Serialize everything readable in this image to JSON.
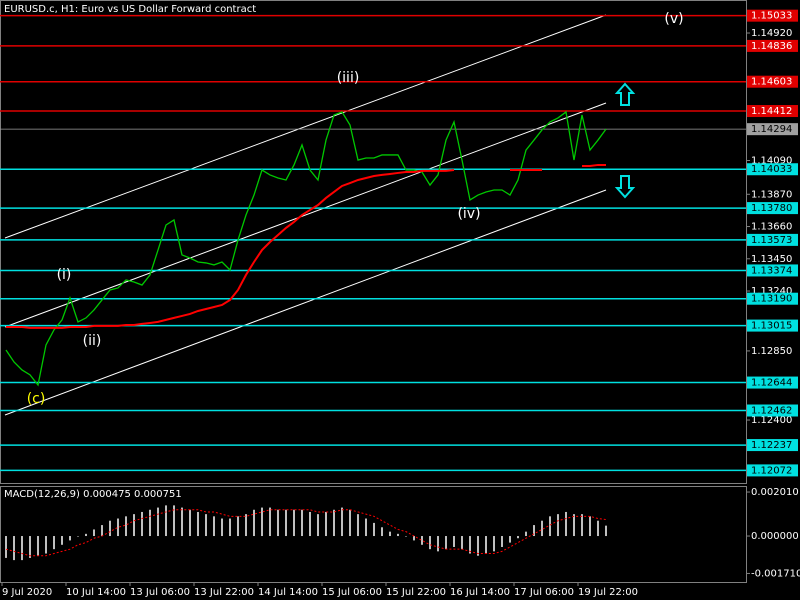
{
  "chart_data": [
    {
      "type": "line",
      "title": "EURUSD.c, H1:  Euro vs US Dollar Forward contract",
      "categories": [
        "9 Jul 2020",
        null,
        null,
        null,
        null,
        null,
        null,
        null,
        "10 Jul 14:00",
        null,
        null,
        null,
        null,
        null,
        null,
        null,
        "13 Jul 06:00",
        null,
        null,
        null,
        null,
        null,
        null,
        null,
        "13 Jul 22:00",
        null,
        null,
        null,
        null,
        null,
        null,
        null,
        "14 Jul 14:00",
        null,
        null,
        null,
        null,
        null,
        null,
        null,
        "15 Jul 06:00",
        null,
        null,
        null,
        null,
        null,
        null,
        null,
        "15 Jul 22:00",
        null,
        null,
        null,
        null,
        null,
        null,
        null,
        "16 Jul 14:00",
        null,
        null,
        null,
        null,
        null,
        null,
        null,
        "17 Jul 06:00",
        null,
        null,
        null,
        null,
        null,
        null,
        null,
        "19 Jul 22:00",
        null,
        null,
        null
      ],
      "series": [
        {
          "color": "#00c800",
          "values": [
            1.12856,
            1.12778,
            1.12726,
            1.12694,
            1.12628,
            1.12889,
            1.12987,
            1.13052,
            1.13195,
            1.13039,
            1.13065,
            1.13117,
            1.13182,
            1.13247,
            1.1326,
            1.13312,
            1.13299,
            1.13279,
            1.13345,
            1.13507,
            1.1367,
            1.13703,
            1.13475,
            1.13455,
            1.13429,
            1.13423,
            1.1341,
            1.13429,
            1.13377,
            1.13572,
            1.13735,
            1.13865,
            1.14028,
            1.13996,
            1.13976,
            1.13963,
            1.14061,
            1.14191,
            1.14028,
            1.13963,
            1.14223,
            1.14386,
            1.14406,
            1.14321,
            1.14093,
            1.14106,
            1.14106,
            1.14126,
            1.14126,
            1.14126,
            1.14028,
            1.14028,
            1.14015,
            1.1393,
            1.13996,
            1.14223,
            1.14341,
            1.14093,
            1.13833,
            1.13865,
            1.13885,
            1.13898,
            1.13898,
            1.13865,
            1.13963,
            1.14158,
            1.14223,
            1.14289,
            1.14341,
            1.14367,
            1.14406,
            1.14093,
            1.14386,
            1.14158,
            1.14223,
            1.14294
          ]
        },
        {
          "color": "#ff0000",
          "values": [
            1.13006,
            1.13006,
            1.13006,
            1.13,
            1.13,
            1.13,
            1.13,
            1.13,
            1.13006,
            1.13006,
            1.13006,
            1.13013,
            1.13013,
            1.13013,
            1.13013,
            1.13019,
            1.13019,
            1.13026,
            1.13032,
            1.13039,
            1.13052,
            1.13065,
            1.13078,
            1.13091,
            1.1311,
            1.13123,
            1.13136,
            1.13149,
            1.13182,
            1.13247,
            1.13345,
            1.13429,
            1.13507,
            1.13559,
            1.13605,
            1.13651,
            1.1369,
            1.13735,
            1.13768,
            1.138,
            1.13846,
            1.13885,
            1.13924,
            1.13943,
            1.13963,
            1.13976,
            1.13989,
            1.13996,
            1.14002,
            1.14009,
            1.14015,
            1.14015,
            1.14022,
            1.14022,
            1.14022,
            1.14022,
            1.14028,
            null,
            null,
            null,
            null,
            null,
            null,
            1.14028,
            1.14028,
            1.14028,
            1.14028,
            1.14028,
            null,
            null,
            null,
            null,
            1.14054,
            1.14054,
            1.14061,
            1.14061
          ]
        }
      ],
      "ylim": [
        1.1199,
        1.15135
      ],
      "yticks": [
        {
          "value": 1.1492,
          "label": "1.14920"
        },
        {
          "value": 1.1409,
          "label": "1.14090"
        },
        {
          "value": 1.1387,
          "label": "1.13870"
        },
        {
          "value": 1.1366,
          "label": "1.13660"
        },
        {
          "value": 1.1345,
          "label": "1.13450"
        },
        {
          "value": 1.1324,
          "label": "1.13240"
        },
        {
          "value": 1.1285,
          "label": "1.12850"
        },
        {
          "value": 1.124,
          "label": "1.12400"
        }
      ],
      "levels": [
        {
          "value": 1.15033,
          "label": "1.15033",
          "color": "#e00000"
        },
        {
          "value": 1.14836,
          "label": "1.14836",
          "color": "#e00000"
        },
        {
          "value": 1.14603,
          "label": "1.14603",
          "color": "#e00000"
        },
        {
          "value": 1.14412,
          "label": "1.14412",
          "color": "#e00000"
        },
        {
          "value": 1.14033,
          "label": "1.14033",
          "color": "#00e0e0"
        },
        {
          "value": 1.1378,
          "label": "1.13780",
          "color": "#00e0e0"
        },
        {
          "value": 1.13573,
          "label": "1.13573",
          "color": "#00e0e0"
        },
        {
          "value": 1.13374,
          "label": "1.13374",
          "color": "#00e0e0"
        },
        {
          "value": 1.1319,
          "label": "1.13190",
          "color": "#00e0e0"
        },
        {
          "value": 1.13015,
          "label": "1.13015",
          "color": "#00e0e0"
        },
        {
          "value": 1.12644,
          "label": "1.12644",
          "color": "#00e0e0"
        },
        {
          "value": 1.12462,
          "label": "1.12462",
          "color": "#00e0e0"
        },
        {
          "value": 1.12237,
          "label": "1.12237",
          "color": "#00e0e0"
        },
        {
          "value": 1.12072,
          "label": "1.12072",
          "color": "#00e0e0"
        }
      ],
      "last_price": {
        "value": 1.14294,
        "label": "1.14294",
        "color": "#a0a0a0"
      },
      "annotations": [
        {
          "text": "(c)",
          "color": "#ffff00"
        },
        {
          "text": "(i)",
          "color": "#ffffff"
        },
        {
          "text": "(ii)",
          "color": "#ffffff"
        },
        {
          "text": "(iii)",
          "color": "#ffffff"
        },
        {
          "text": "(iv)",
          "color": "#ffffff"
        },
        {
          "text": "(v)",
          "color": "#ffffff"
        }
      ]
    },
    {
      "type": "bar",
      "title": "MACD(12,26,9) 0.000475 0.000751",
      "series": [
        {
          "color": "#c0c0c0",
          "values": [
            -0.001,
            -0.0011,
            -0.0011,
            -0.001,
            -0.0009,
            -0.0008,
            -0.0006,
            -0.0004,
            -0.0002,
            0,
            0.0001,
            0.0003,
            0.0005,
            0.0007,
            0.0008,
            0.0009,
            0.001,
            0.0011,
            0.0012,
            0.0013,
            0.0014,
            0.0014,
            0.0013,
            0.0012,
            0.0011,
            0.001,
            0.0009,
            0.0008,
            0.0008,
            0.0009,
            0.001,
            0.0012,
            0.0013,
            0.0013,
            0.0012,
            0.0012,
            0.0012,
            0.0012,
            0.0011,
            0.001,
            0.0011,
            0.0012,
            0.0013,
            0.0012,
            0.001,
            0.0008,
            0.0006,
            0.0004,
            0.0002,
            0.0001,
            0,
            -0.0002,
            -0.0004,
            -0.0006,
            -0.0007,
            -0.0006,
            -0.0005,
            -0.0006,
            -0.0008,
            -0.0009,
            -0.0008,
            -0.0007,
            -0.0005,
            -0.0003,
            -0.0001,
            0.0002,
            0.0005,
            0.0007,
            0.0009,
            0.001,
            0.0011,
            0.001,
            0.001,
            0.0009,
            0.0007,
            0.000475
          ]
        },
        {
          "color": "#ff0000",
          "type": "line",
          "values": [
            -0.0006,
            -0.0007,
            -0.0008,
            -0.0009,
            -0.0009,
            -0.0009,
            -0.0008,
            -0.0007,
            -0.0006,
            -0.0004,
            -0.0003,
            -0.0001,
            0,
            0.0002,
            0.0004,
            0.0005,
            0.0007,
            0.0008,
            0.0009,
            0.001,
            0.0011,
            0.0012,
            0.0012,
            0.0012,
            0.0012,
            0.0011,
            0.0011,
            0.001,
            0.0009,
            0.0009,
            0.0009,
            0.001,
            0.0011,
            0.0012,
            0.0012,
            0.0012,
            0.0012,
            0.0012,
            0.0012,
            0.0011,
            0.0011,
            0.0011,
            0.0012,
            0.0012,
            0.0011,
            0.001,
            0.0009,
            0.0007,
            0.0005,
            0.0003,
            0.0002,
            0,
            -0.0002,
            -0.0004,
            -0.0005,
            -0.0006,
            -0.0006,
            -0.0006,
            -0.0007,
            -0.0008,
            -0.0008,
            -0.0008,
            -0.0007,
            -0.0005,
            -0.0003,
            -0.0001,
            0.0001,
            0.0003,
            0.0005,
            0.0007,
            0.0008,
            0.0009,
            0.0009,
            0.0009,
            0.0008,
            0.000751
          ]
        }
      ],
      "ylim": [
        -0.0021,
        0.00224
      ],
      "yticks": [
        {
          "value": 0.00201,
          "label": "0.002010"
        },
        {
          "value": 0,
          "label": "0.000000"
        },
        {
          "value": -0.00171,
          "label": "-0.001710"
        }
      ]
    }
  ]
}
